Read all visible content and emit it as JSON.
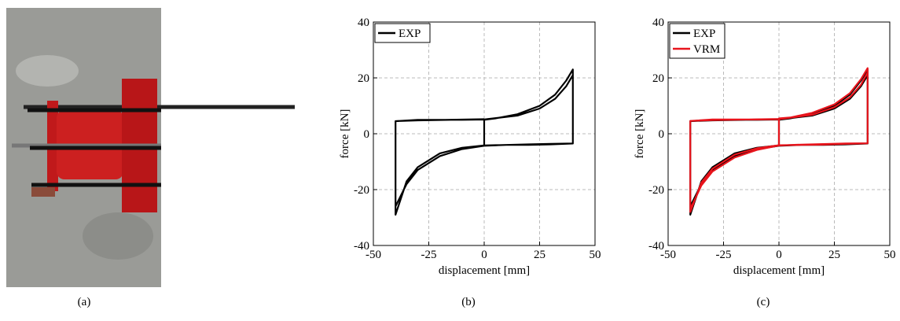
{
  "photo": {
    "caption": "(a)"
  },
  "chart_data": [
    {
      "type": "line",
      "caption": "(b)",
      "xlabel": "displacement [mm]",
      "ylabel": "force [kN]",
      "xlim": [
        -50,
        50
      ],
      "xticks": [
        -50,
        -25,
        0,
        25,
        50
      ],
      "ylim": [
        -40,
        40
      ],
      "yticks": [
        -40,
        -20,
        0,
        20,
        40
      ],
      "grid": true,
      "legend": "upper left",
      "x": [
        0,
        0,
        5,
        15,
        25,
        32,
        37,
        40,
        40,
        30,
        20,
        10,
        0,
        -10,
        -20,
        -30,
        -35,
        -40,
        -40,
        -30,
        -20,
        -10,
        0,
        15,
        25,
        32,
        37,
        40,
        40,
        30,
        20,
        10,
        0,
        -10,
        -20,
        -30,
        -35,
        -40,
        -40,
        -30,
        0
      ],
      "series": [
        {
          "name": "EXP",
          "color": "#000000",
          "values": [
            -4,
            5,
            5.5,
            7,
            10,
            14,
            19,
            23,
            -3.5,
            -3.8,
            -4,
            -4,
            -4.2,
            -5,
            -7,
            -12,
            -17,
            -29,
            4.5,
            5,
            5,
            5,
            5.1,
            6.5,
            9,
            12.5,
            17,
            21,
            -3.5,
            -3.6,
            -3.8,
            -4,
            -4.3,
            -5.5,
            -8,
            -13,
            -18,
            -26,
            4.5,
            4.8,
            5.2
          ]
        }
      ]
    },
    {
      "type": "line",
      "caption": "(c)",
      "xlabel": "displacement [mm]",
      "ylabel": "force [kN]",
      "xlim": [
        -50,
        50
      ],
      "xticks": [
        -50,
        -25,
        0,
        25,
        50
      ],
      "ylim": [
        -40,
        40
      ],
      "yticks": [
        -40,
        -20,
        0,
        20,
        40
      ],
      "grid": true,
      "legend": "upper left",
      "x": [
        0,
        0,
        5,
        15,
        25,
        32,
        37,
        40,
        40,
        30,
        20,
        10,
        0,
        -10,
        -20,
        -30,
        -35,
        -40,
        -40,
        -30,
        -20,
        -10,
        0,
        15,
        25,
        32,
        37,
        40,
        40,
        30,
        20,
        10,
        0,
        -10,
        -20,
        -30,
        -35,
        -40,
        -40,
        -30,
        0
      ],
      "series": [
        {
          "name": "EXP",
          "color": "#000000",
          "values": [
            -4,
            5,
            5.5,
            7,
            10,
            14,
            19,
            23,
            -3.5,
            -3.8,
            -4,
            -4,
            -4.2,
            -5,
            -7,
            -12,
            -17,
            -29,
            4.5,
            5,
            5,
            5,
            5.1,
            6.5,
            9,
            12.5,
            17,
            21,
            -3.5,
            -3.6,
            -3.8,
            -4,
            -4.3,
            -5.5,
            -8,
            -13,
            -18,
            -26,
            4.5,
            4.8,
            5.2
          ]
        },
        {
          "name": "VRM",
          "color": "#e8141c",
          "values": [
            -4,
            5.5,
            5.8,
            7.5,
            10.5,
            14.5,
            19.5,
            23.5,
            -3.4,
            -3.6,
            -3.9,
            -4,
            -4.1,
            -5.2,
            -7.5,
            -12.5,
            -17.5,
            -28,
            4.6,
            5.1,
            5.1,
            5.1,
            5.2,
            6.8,
            9.5,
            13,
            17.5,
            22,
            -3.4,
            -3.5,
            -3.7,
            -3.9,
            -4.2,
            -5.8,
            -8.5,
            -13.5,
            -18.5,
            -27,
            4.6,
            4.9,
            5.3
          ]
        }
      ]
    }
  ]
}
